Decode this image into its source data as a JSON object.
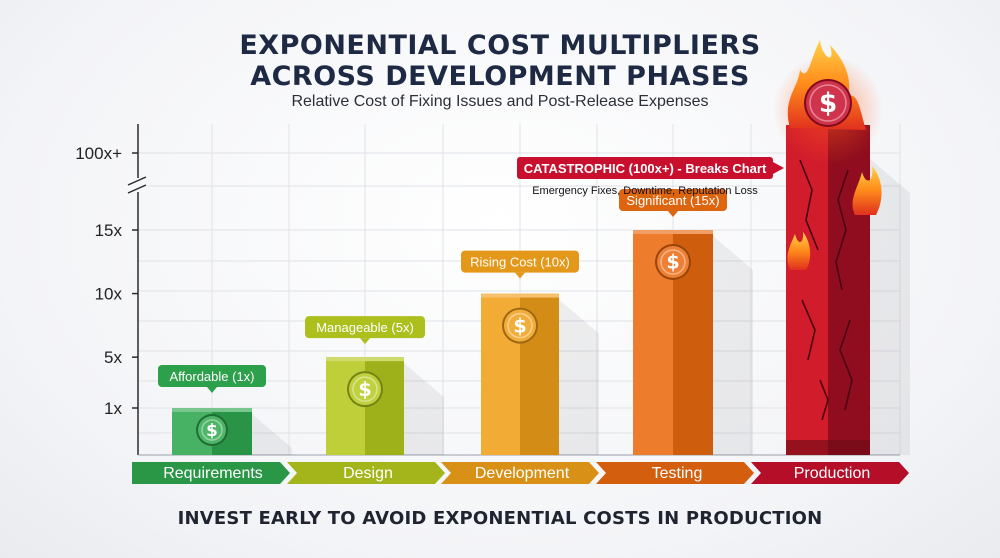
{
  "title": "EXPONENTIAL COST MULTIPLIERS\nACROSS DEVELOPMENT PHASES",
  "subtitle": "Relative Cost of Fixing Issues and Post-Release Expenses",
  "footer": "INVEST EARLY TO AVOID EXPONENTIAL COSTS IN PRODUCTION",
  "chart_data": {
    "type": "bar",
    "title": "EXPONENTIAL COST MULTIPLIERS ACROSS DEVELOPMENT PHASES",
    "subtitle": "Relative Cost of Fixing Issues and Post-Release Expenses",
    "categories": [
      "Requirements",
      "Design",
      "Development",
      "Testing",
      "Production"
    ],
    "values": [
      1,
      5,
      10,
      15,
      100
    ],
    "data_labels": [
      "Affordable (1x)",
      "Manageable (5x)",
      "Rising Cost (10x)",
      "Significant (15x)",
      "CATASTROPHIC (100x+) - Breaks Chart"
    ],
    "annotation": "Emergency Fixes, Downtime, Reputation Loss",
    "ytick_values": [
      1,
      5,
      10,
      15,
      100
    ],
    "ytick_labels": [
      "1x",
      "5x",
      "10x",
      "15x",
      "100x+"
    ],
    "axis_break": "between 15x and 100x+",
    "grid": true,
    "colors": [
      "#2fa84f",
      "#b5c91e",
      "#f0a01a",
      "#ea6a10",
      "#c8102e"
    ],
    "coin_symbol": "$"
  }
}
